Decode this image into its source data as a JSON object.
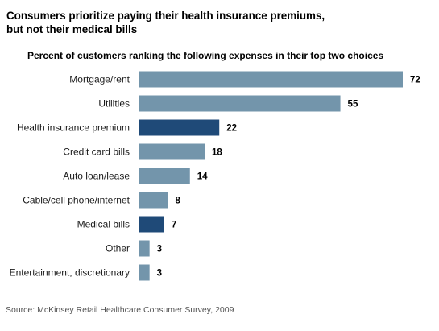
{
  "title_lines": [
    "Consumers prioritize paying their health insurance premiums,",
    "but not their medical bills"
  ],
  "source": "Source:  McKinsey Retail Healthcare Consumer Survey, 2009",
  "colors": {
    "default_bar": "#7395ab",
    "highlight_bar": "#1f4a78"
  },
  "chart_data": {
    "type": "bar",
    "orientation": "horizontal",
    "title": "Percent of customers ranking the following expenses in their top two choices",
    "categories": [
      "Mortgage/rent",
      "Utilities",
      "Health insurance premium",
      "Credit card bills",
      "Auto loan/lease",
      "Cable/cell phone/internet",
      "Medical bills",
      "Other",
      "Entertainment, discretionary"
    ],
    "values": [
      72,
      55,
      22,
      18,
      14,
      8,
      7,
      3,
      3
    ],
    "highlighted": [
      false,
      false,
      true,
      false,
      false,
      false,
      true,
      false,
      false
    ],
    "xlim": [
      0,
      72
    ],
    "grid": false,
    "legend": "none"
  }
}
